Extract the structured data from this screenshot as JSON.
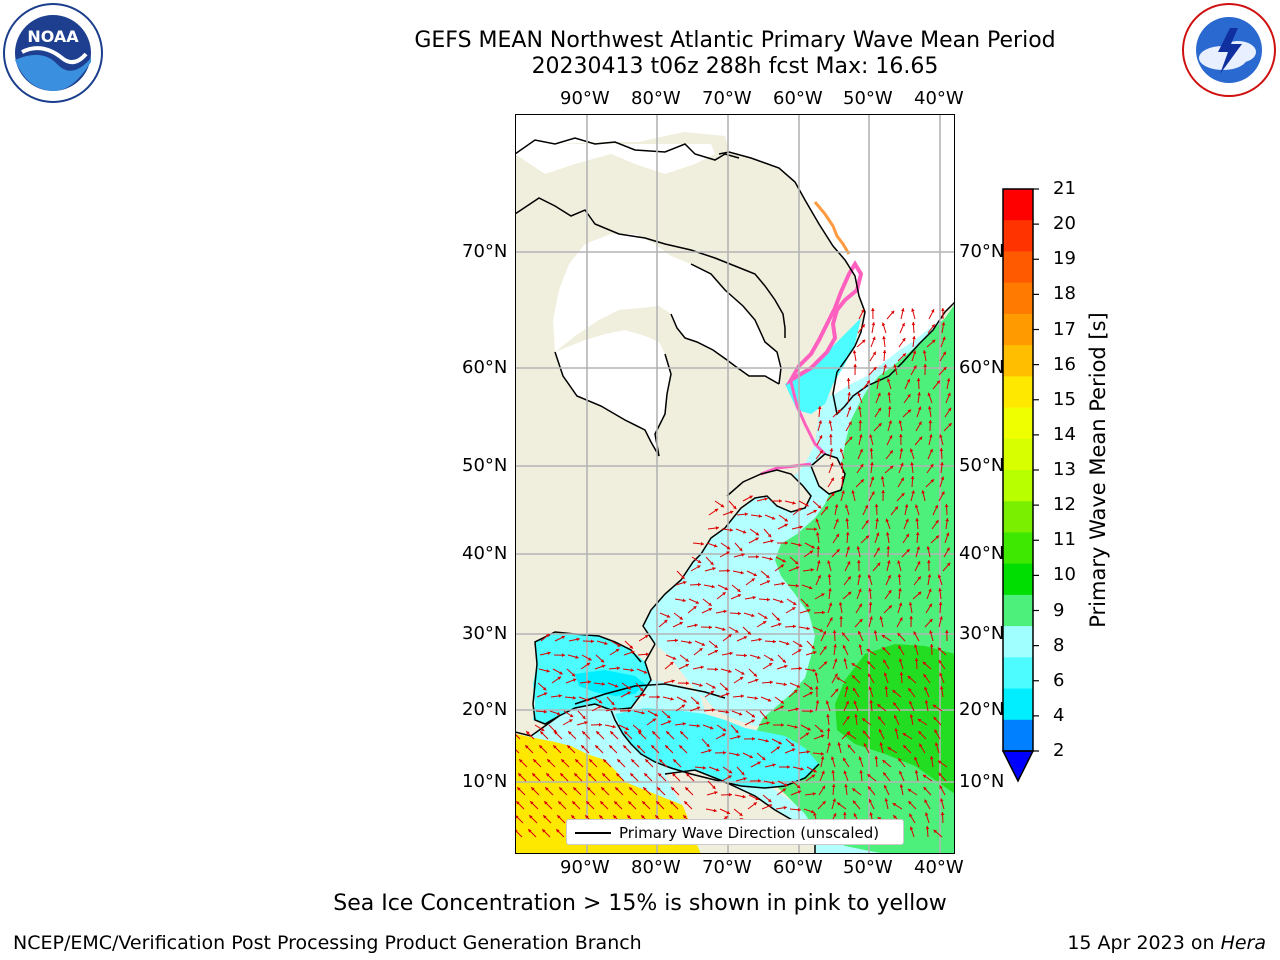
{
  "title": {
    "line1": "GEFS MEAN Northwest Atlantic Primary Wave Mean Period",
    "line2": "20230413 t06z 288h fcst   Max: 16.65"
  },
  "map": {
    "lon_ticks": [
      "90°W",
      "80°W",
      "70°W",
      "60°W",
      "50°W",
      "40°W"
    ],
    "lat_ticks": [
      "70°N",
      "60°N",
      "50°N",
      "40°N",
      "30°N",
      "20°N",
      "10°N"
    ],
    "legend_label": "Primary Wave Direction (unscaled)",
    "colors": {
      "land": "#f0eedc",
      "ice_free_land": "#ffffff",
      "arrow": "#dd0000"
    }
  },
  "colorbar": {
    "label": "Primary Wave Mean Period [s]",
    "ticks": [
      "21",
      "20",
      "19",
      "18",
      "17",
      "16",
      "15",
      "14",
      "13",
      "12",
      "11",
      "10",
      "9",
      "8",
      "6",
      "4",
      "2"
    ],
    "colors": [
      "#ff0000",
      "#ff3300",
      "#ff5a00",
      "#ff7a00",
      "#ff9a00",
      "#ffbe00",
      "#ffe800",
      "#f0ff00",
      "#d8ff00",
      "#b8ff00",
      "#7af000",
      "#3ee800",
      "#00dd00",
      "#4cf07a",
      "#a0ffff",
      "#4cfcff",
      "#00eeff",
      "#0080ff"
    ],
    "under_color": "#0000ff"
  },
  "logos": {
    "left": "NOAA",
    "right": "NATIONAL WEATHER SERVICE"
  },
  "caption": "Sea Ice Concentration > 15% is shown in pink to yellow",
  "footer": {
    "left": "NCEP/EMC/Verification Post Processing Product Generation Branch",
    "right_prefix": "15 Apr 2023 on ",
    "right_host": "Hera"
  }
}
